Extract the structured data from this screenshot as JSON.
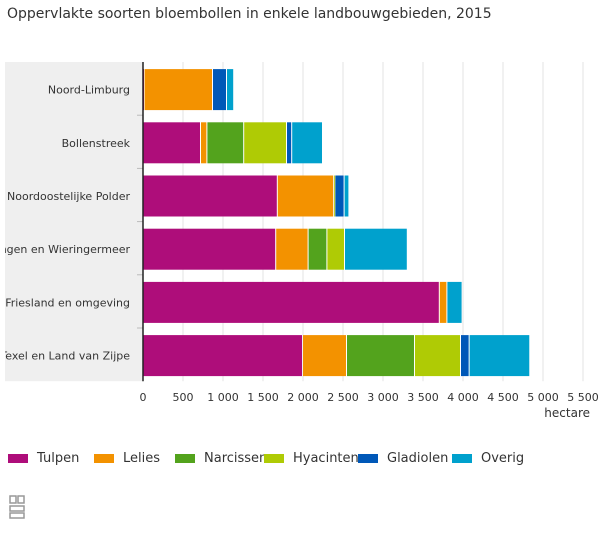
{
  "chart_data": {
    "type": "bar",
    "orientation": "horizontal",
    "stacked": true,
    "title": "Oppervlakte soorten bloembollen in enkele landbouwgebieden, 2015",
    "xlabel": "hectare",
    "xlim": [
      0,
      5500
    ],
    "xticks": [
      0,
      500,
      1000,
      1500,
      2000,
      2500,
      3000,
      3500,
      4000,
      4500,
      5000,
      5500
    ],
    "xtick_labels": [
      "0",
      "500",
      "1 000",
      "1 500",
      "2 000",
      "2 500",
      "3 000",
      "3 500",
      "4 000",
      "4 500",
      "5 000",
      "5 500"
    ],
    "grid": true,
    "legend": "bottom",
    "categories": [
      "Noord-Limburg",
      "Bollenstreek",
      "Noordoostelijke Polder",
      "ingen en Wieringermeer",
      "t-Friesland en omgeving",
      "Texel en Land van Zijpe"
    ],
    "series": [
      {
        "name": "Tulpen",
        "color": "#ae0d7a",
        "values": [
          20,
          725,
          1685,
          1665,
          3710,
          2000
        ]
      },
      {
        "name": "Lelies",
        "color": "#f39200",
        "values": [
          855,
          80,
          705,
          405,
          95,
          550
        ]
      },
      {
        "name": "Narcissen",
        "color": "#53a31d",
        "values": [
          0,
          460,
          0,
          235,
          0,
          850
        ]
      },
      {
        "name": "Hyacinten",
        "color": "#afcb05",
        "values": [
          0,
          535,
          15,
          220,
          0,
          575
        ]
      },
      {
        "name": "Gladiolen",
        "color": "#0058b8",
        "values": [
          175,
          65,
          115,
          0,
          0,
          108
        ]
      },
      {
        "name": "Overig",
        "color": "#00a1cd",
        "values": [
          90,
          385,
          60,
          785,
          190,
          758
        ]
      }
    ]
  }
}
